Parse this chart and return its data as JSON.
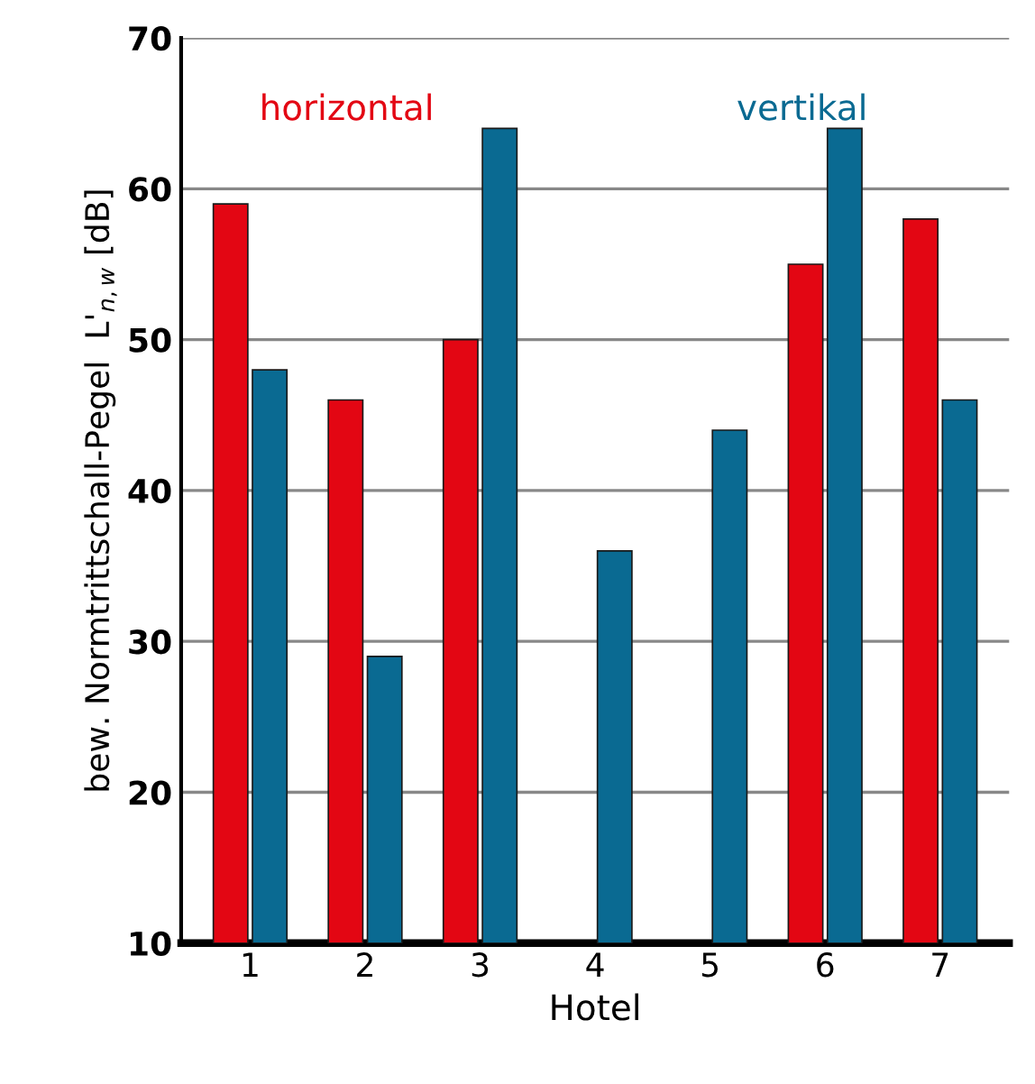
{
  "chart_data": {
    "type": "bar",
    "xlabel": "Hotel",
    "ylabel": "bew. Normtrittschall-Pegel  L'$_{n,w}$ [dB]",
    "categories": [
      "1",
      "2",
      "3",
      "4",
      "5",
      "6",
      "7"
    ],
    "series": [
      {
        "name": "horizontal",
        "color": "#e30613",
        "values": [
          59,
          46,
          50,
          null,
          null,
          55,
          58
        ]
      },
      {
        "name": "vertikal",
        "color": "#0a6a92",
        "values": [
          48,
          29,
          64,
          36,
          44,
          64,
          46
        ]
      }
    ],
    "ylim": [
      10,
      70
    ],
    "yticks": [
      10,
      20,
      30,
      40,
      50,
      60,
      70
    ],
    "grid": "y",
    "legend": false
  }
}
